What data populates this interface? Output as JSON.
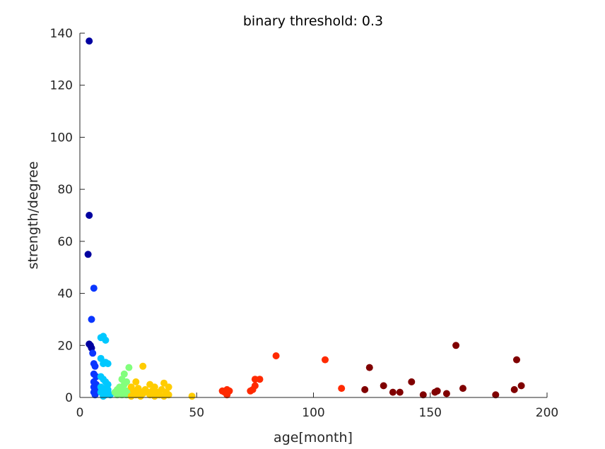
{
  "chart_data": {
    "type": "scatter",
    "title": "binary threshold: 0.3",
    "xlabel": "age[month]",
    "ylabel": "strength/degree",
    "xlim": [
      0,
      200
    ],
    "ylim": [
      0,
      140
    ],
    "xticks": [
      "0",
      "50",
      "100",
      "150",
      "200"
    ],
    "yticks": [
      "0",
      "20",
      "40",
      "60",
      "80",
      "100",
      "120",
      "140"
    ],
    "grid": false,
    "legend": "none",
    "series": [
      {
        "color": "#0000A0",
        "points": [
          [
            4,
            137
          ],
          [
            4,
            70
          ],
          [
            3.5,
            55
          ],
          [
            4,
            20.5
          ],
          [
            4.5,
            20
          ],
          [
            5,
            19
          ]
        ]
      },
      {
        "color": "#0A36FF",
        "points": [
          [
            6,
            42
          ],
          [
            5,
            30
          ],
          [
            5.5,
            17
          ],
          [
            6,
            13
          ],
          [
            6.5,
            12
          ],
          [
            6,
            9
          ],
          [
            7,
            8
          ],
          [
            6,
            6
          ],
          [
            7,
            5
          ],
          [
            6,
            4
          ],
          [
            7,
            3
          ],
          [
            6,
            2
          ],
          [
            8,
            2.5
          ],
          [
            6.5,
            1
          ]
        ]
      },
      {
        "color": "#00C8FF",
        "points": [
          [
            9,
            23
          ],
          [
            10,
            23.5
          ],
          [
            11,
            22
          ],
          [
            9,
            15
          ],
          [
            10,
            13
          ],
          [
            11,
            13.5
          ],
          [
            12,
            13
          ],
          [
            9,
            8
          ],
          [
            10,
            7
          ],
          [
            11,
            6
          ],
          [
            12,
            5
          ],
          [
            9,
            4
          ],
          [
            10,
            3.5
          ],
          [
            11,
            3
          ],
          [
            12,
            3
          ],
          [
            9,
            2
          ],
          [
            10,
            1.5
          ],
          [
            11,
            1
          ],
          [
            12,
            2
          ],
          [
            13,
            1
          ],
          [
            10,
            0.5
          ]
        ]
      },
      {
        "color": "#82FF7C",
        "points": [
          [
            21,
            11.5
          ],
          [
            19,
            9
          ],
          [
            18,
            7
          ],
          [
            20,
            6
          ],
          [
            19,
            5
          ],
          [
            17,
            4
          ],
          [
            16,
            3
          ],
          [
            18,
            3
          ],
          [
            20,
            2.5
          ],
          [
            15,
            2
          ],
          [
            17,
            2
          ],
          [
            19,
            1.5
          ],
          [
            16,
            1
          ],
          [
            18,
            1
          ],
          [
            20,
            1
          ],
          [
            21,
            2
          ]
        ]
      },
      {
        "color": "#FFCC00",
        "points": [
          [
            27,
            12
          ],
          [
            24,
            6
          ],
          [
            22,
            4
          ],
          [
            25,
            3.5
          ],
          [
            28,
            3
          ],
          [
            30,
            5
          ],
          [
            32,
            4
          ],
          [
            36,
            5.5
          ],
          [
            38,
            4
          ],
          [
            23,
            2.5
          ],
          [
            26,
            2
          ],
          [
            29,
            2
          ],
          [
            31,
            2.5
          ],
          [
            33,
            2
          ],
          [
            35,
            3
          ],
          [
            37,
            2
          ],
          [
            24,
            1
          ],
          [
            27,
            1.5
          ],
          [
            30,
            1
          ],
          [
            34,
            1
          ],
          [
            38,
            1
          ],
          [
            22,
            0.5
          ],
          [
            26,
            0.5
          ],
          [
            32,
            0.5
          ],
          [
            36,
            0.5
          ],
          [
            48,
            0.5
          ]
        ]
      },
      {
        "color": "#FF2A00",
        "points": [
          [
            61,
            2.5
          ],
          [
            62,
            2
          ],
          [
            63,
            3
          ],
          [
            64,
            2.5
          ],
          [
            63,
            1
          ],
          [
            73,
            2.5
          ],
          [
            74,
            3
          ],
          [
            75,
            4.5
          ],
          [
            75,
            7
          ],
          [
            77,
            7
          ],
          [
            84,
            16
          ],
          [
            105,
            14.5
          ],
          [
            112,
            3.5
          ]
        ]
      },
      {
        "color": "#800000",
        "points": [
          [
            124,
            11.5
          ],
          [
            122,
            3
          ],
          [
            130,
            4.5
          ],
          [
            134,
            2
          ],
          [
            137,
            2
          ],
          [
            142,
            6
          ],
          [
            147,
            1
          ],
          [
            152,
            2
          ],
          [
            153,
            2.5
          ],
          [
            157,
            1.5
          ],
          [
            161,
            20
          ],
          [
            164,
            3.5
          ],
          [
            178,
            1
          ],
          [
            186,
            3
          ],
          [
            187,
            14.5
          ],
          [
            189,
            4.5
          ]
        ]
      }
    ]
  }
}
